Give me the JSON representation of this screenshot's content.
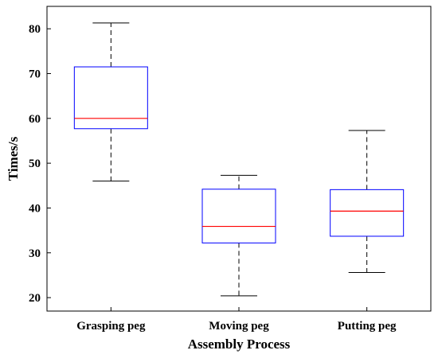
{
  "chart_data": {
    "type": "box",
    "title": "",
    "xlabel": "Assembly Process",
    "ylabel": "Times/s",
    "ylim": [
      17,
      85
    ],
    "yticks": [
      20,
      30,
      40,
      50,
      60,
      70,
      80
    ],
    "grid": false,
    "categories": [
      "Grasping peg",
      "Moving peg",
      "Putting peg"
    ],
    "boxes": [
      {
        "category": "Grasping peg",
        "whisker_low": 46.0,
        "q1": 57.7,
        "median": 60.0,
        "q3": 71.5,
        "whisker_high": 81.3
      },
      {
        "category": "Moving peg",
        "whisker_low": 20.4,
        "q1": 32.2,
        "median": 35.9,
        "q3": 44.2,
        "whisker_high": 47.3
      },
      {
        "category": "Putting peg",
        "whisker_low": 25.6,
        "q1": 33.7,
        "median": 39.3,
        "q3": 44.1,
        "whisker_high": 57.3
      }
    ],
    "colors": {
      "box": "#0000ff",
      "median": "#ff0000",
      "whisker": "#000000",
      "frame": "#000000"
    }
  }
}
